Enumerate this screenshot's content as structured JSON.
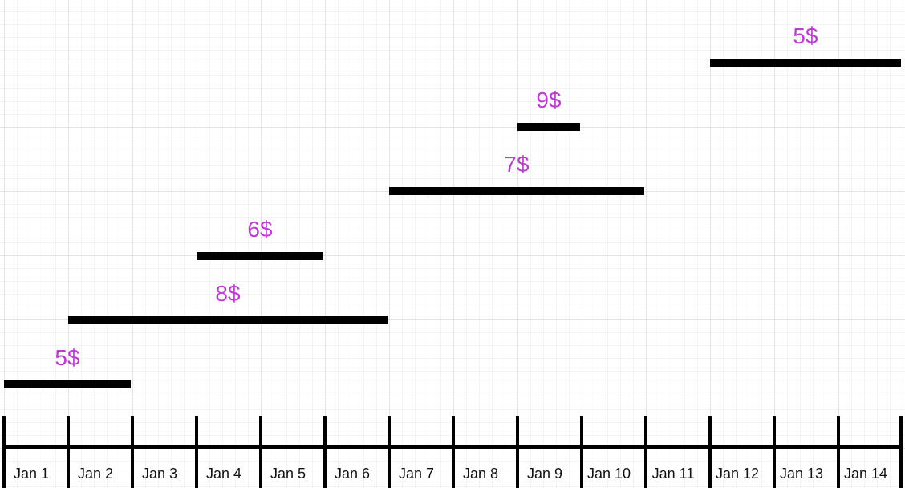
{
  "timeline": {
    "days": [
      "Jan 1",
      "Jan 2",
      "Jan 3",
      "Jan 4",
      "Jan 5",
      "Jan 6",
      "Jan 7",
      "Jan 8",
      "Jan 9",
      "Jan 10",
      "Jan 11",
      "Jan 12",
      "Jan 13",
      "Jan 14"
    ],
    "intervals": [
      {
        "label": "5$",
        "start_day": 1,
        "end_day": 2
      },
      {
        "label": "8$",
        "start_day": 2,
        "end_day": 6
      },
      {
        "label": "6$",
        "start_day": 4,
        "end_day": 5
      },
      {
        "label": "7$",
        "start_day": 7,
        "end_day": 10
      },
      {
        "label": "9$",
        "start_day": 9,
        "end_day": 9
      },
      {
        "label": "5$",
        "start_day": 12,
        "end_day": 14
      }
    ]
  },
  "colors": {
    "label_color": "#bb3fcf",
    "bar_color": "#000000",
    "axis_color": "#000000",
    "grid_major": "#e4e4e4",
    "grid_minor": "#f3f3f3"
  }
}
